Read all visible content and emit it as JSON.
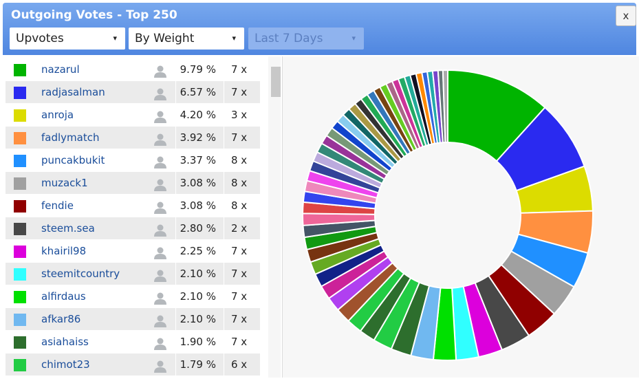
{
  "header": {
    "title": "Outgoing Votes - Top 250",
    "close": "x"
  },
  "filters": [
    "Upvotes",
    "By Weight",
    "Last 7 Days"
  ],
  "rows": [
    {
      "color": "#00b400",
      "name": "nazarul",
      "percent": 9.79,
      "percent_label": "9.79 %",
      "count": "7 x"
    },
    {
      "color": "#2a2af0",
      "name": "radjasalman",
      "percent": 6.57,
      "percent_label": "6.57 %",
      "count": "7 x"
    },
    {
      "color": "#dcdc00",
      "name": "anroja",
      "percent": 4.2,
      "percent_label": "4.20 %",
      "count": "3 x"
    },
    {
      "color": "#ff9040",
      "name": "fadlymatch",
      "percent": 3.92,
      "percent_label": "3.92 %",
      "count": "7 x"
    },
    {
      "color": "#2090ff",
      "name": "puncakbukit",
      "percent": 3.37,
      "percent_label": "3.37 %",
      "count": "8 x"
    },
    {
      "color": "#a0a0a0",
      "name": "muzack1",
      "percent": 3.08,
      "percent_label": "3.08 %",
      "count": "8 x"
    },
    {
      "color": "#900000",
      "name": "fendie",
      "percent": 3.08,
      "percent_label": "3.08 %",
      "count": "8 x"
    },
    {
      "color": "#484848",
      "name": "steem.sea",
      "percent": 2.8,
      "percent_label": "2.80 %",
      "count": "2 x"
    },
    {
      "color": "#dc00dc",
      "name": "khairil98",
      "percent": 2.25,
      "percent_label": "2.25 %",
      "count": "7 x"
    },
    {
      "color": "#30ffff",
      "name": "steemitcountry",
      "percent": 2.1,
      "percent_label": "2.10 %",
      "count": "7 x"
    },
    {
      "color": "#00e000",
      "name": "alfirdaus",
      "percent": 2.1,
      "percent_label": "2.10 %",
      "count": "7 x"
    },
    {
      "color": "#70b8f0",
      "name": "afkar86",
      "percent": 2.1,
      "percent_label": "2.10 %",
      "count": "7 x"
    },
    {
      "color": "#2d6e2d",
      "name": "asiahaiss",
      "percent": 1.9,
      "percent_label": "1.90 %",
      "count": "7 x"
    },
    {
      "color": "#22cc44",
      "name": "chimot23",
      "percent": 1.79,
      "percent_label": "1.79 %",
      "count": "6 x"
    }
  ],
  "more_slices": [
    {
      "color": "#2d6e2d",
      "value": 1.5
    },
    {
      "color": "#22cc44",
      "value": 1.45
    },
    {
      "color": "#a0522d",
      "value": 1.4
    },
    {
      "color": "#b040f0",
      "value": 1.35
    },
    {
      "color": "#cc2299",
      "value": 1.3
    },
    {
      "color": "#112288",
      "value": 1.25
    },
    {
      "color": "#66aa22",
      "value": 1.2
    },
    {
      "color": "#773311",
      "value": 1.2
    },
    {
      "color": "#119911",
      "value": 1.15
    },
    {
      "color": "#445566",
      "value": 1.1
    },
    {
      "color": "#ee6699",
      "value": 1.1
    },
    {
      "color": "#dd4444",
      "value": 1.05
    },
    {
      "color": "#3344ee",
      "value": 1.0
    },
    {
      "color": "#ee88bb",
      "value": 1.0
    },
    {
      "color": "#ee44ee",
      "value": 0.95
    },
    {
      "color": "#334499",
      "value": 0.95
    },
    {
      "color": "#bbaadd",
      "value": 0.9
    },
    {
      "color": "#338877",
      "value": 0.9
    },
    {
      "color": "#993399",
      "value": 0.85
    },
    {
      "color": "#779977",
      "value": 0.85
    },
    {
      "color": "#1144cc",
      "value": 0.8
    },
    {
      "color": "#88ccee",
      "value": 0.8
    },
    {
      "color": "#116666",
      "value": 0.75
    },
    {
      "color": "#aa9944",
      "value": 0.75
    },
    {
      "color": "#333333",
      "value": 0.7
    },
    {
      "color": "#22aa55",
      "value": 0.7
    },
    {
      "color": "#3377bb",
      "value": 0.7
    },
    {
      "color": "#774411",
      "value": 0.65
    },
    {
      "color": "#66cc22",
      "value": 0.65
    },
    {
      "color": "#aa6688",
      "value": 0.6
    },
    {
      "color": "#cc3399",
      "value": 0.6
    },
    {
      "color": "#22aa66",
      "value": 0.6
    },
    {
      "color": "#22aa99",
      "value": 0.55
    },
    {
      "color": "#111122",
      "value": 0.55
    },
    {
      "color": "#ff8800",
      "value": 0.55
    },
    {
      "color": "#3366dd",
      "value": 0.5
    },
    {
      "color": "#22aaaa",
      "value": 0.5
    },
    {
      "color": "#7744cc",
      "value": 0.5
    },
    {
      "color": "#667777",
      "value": 0.45
    },
    {
      "color": "#aaaaaa",
      "value": 0.45
    }
  ]
}
